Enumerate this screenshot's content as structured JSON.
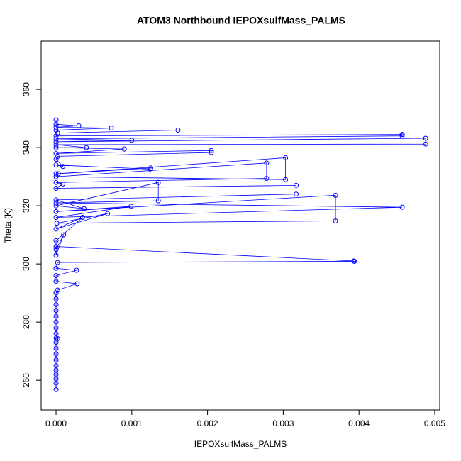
{
  "chart_data": {
    "type": "line",
    "title": "ATOM3 Northbound IEPOXsulfMass_PALMS",
    "xlabel": "IEPOXsulfMass_PALMS",
    "ylabel": "Theta (K)",
    "color": "#0000ff",
    "xlim": [
      -0.000197,
      0.005066
    ],
    "ylim": [
      249.8,
      376.6
    ],
    "xticks": [
      {
        "value": 0,
        "label": "0.000"
      },
      0.001,
      0.002,
      0.003,
      0.004,
      0.005
    ],
    "yticks": [
      260,
      280,
      300,
      320,
      340,
      360
    ],
    "x": [
      0,
      0,
      0,
      0,
      0,
      0,
      0,
      0,
      0,
      0,
      0,
      2e-05,
      0,
      0,
      0,
      0,
      0,
      0,
      0,
      0,
      2e-05,
      0.00028,
      0,
      0,
      0.00027,
      0,
      2e-05,
      0.00394,
      0.00393,
      0,
      0,
      0.0001,
      0,
      0,
      0.00035,
      0,
      0.00068,
      1e-05,
      0.00369,
      0.00369,
      0,
      0.00099,
      0,
      0.00457,
      0,
      0.00135,
      0.00135,
      0,
      0.00037,
      0,
      0.00317,
      0.00317,
      0,
      9e-05,
      0,
      0.00278,
      0.00278,
      0,
      0.00303,
      0.00303,
      0,
      3e-05,
      0.00125,
      0.00124,
      0,
      9e-05,
      0,
      2e-05,
      0.00205,
      0.00205,
      0,
      0.0009,
      0,
      0.0004,
      0,
      0.00488,
      0.00488,
      0,
      0.001,
      0,
      0.00457,
      0.00457,
      0,
      2e-05,
      0.00161,
      0,
      0.00073,
      0,
      0.0003,
      0,
      0
    ],
    "values": [
      256.8,
      259,
      260.5,
      262,
      263.5,
      265,
      267,
      269,
      271,
      273,
      274.5,
      274.3,
      276,
      278,
      280,
      282,
      284,
      286,
      288,
      290,
      291,
      293.2,
      294,
      296,
      297.8,
      298.5,
      300.5,
      300.9,
      301,
      306,
      303,
      310,
      305,
      308,
      316,
      312,
      317.3,
      314,
      314.8,
      323.6,
      318,
      319.8,
      316,
      319.5,
      321,
      321.7,
      328,
      320,
      319,
      322,
      324,
      327,
      326,
      327.5,
      328,
      329.4,
      334.7,
      330,
      329,
      336.5,
      331,
      331,
      333,
      332.6,
      334,
      333.5,
      336,
      337,
      338.3,
      339,
      338,
      339.5,
      340,
      340,
      341,
      341.2,
      343.2,
      342,
      342.5,
      343,
      344,
      344.5,
      344,
      345,
      346,
      346,
      346.7,
      347,
      347.5,
      348,
      349.5
    ]
  }
}
